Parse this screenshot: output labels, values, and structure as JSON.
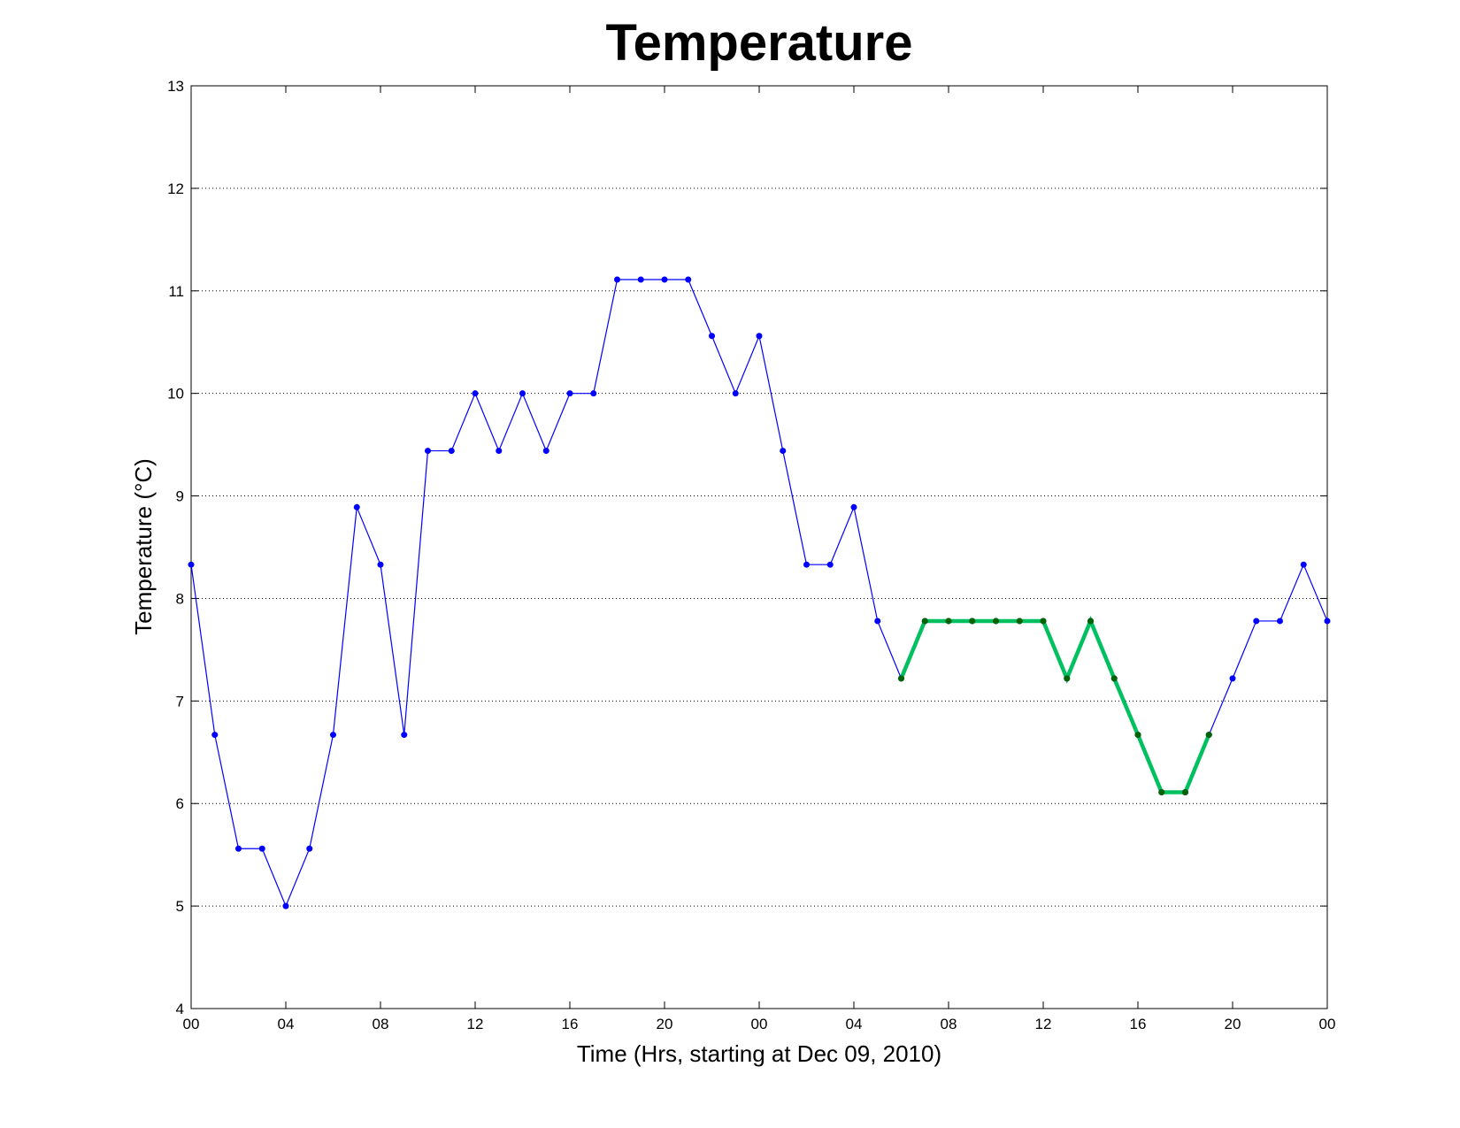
{
  "chart_data": {
    "type": "line",
    "title": "Temperature",
    "xlabel": "Time (Hrs, starting at Dec 09, 2010)",
    "ylabel": "Temperature (°C)",
    "xlim": [
      0,
      48
    ],
    "ylim": [
      4,
      13
    ],
    "x_ticks": [
      0,
      4,
      8,
      12,
      16,
      20,
      24,
      28,
      32,
      36,
      40,
      44,
      48
    ],
    "x_tick_labels": [
      "00",
      "04",
      "08",
      "12",
      "16",
      "20",
      "00",
      "04",
      "08",
      "12",
      "16",
      "20",
      "00"
    ],
    "y_ticks": [
      4,
      5,
      6,
      7,
      8,
      9,
      10,
      11,
      12,
      13
    ],
    "y_tick_labels": [
      "4",
      "5",
      "6",
      "7",
      "8",
      "9",
      "10",
      "11",
      "12",
      "13"
    ],
    "grid": "horizontal dotted",
    "colors": {
      "observed": "#0000ff",
      "highlight_line": "#00c060",
      "highlight_marker": "#006400"
    },
    "series": [
      {
        "x": [
          0,
          1,
          2,
          3,
          4,
          5,
          6,
          7,
          8,
          9,
          10,
          11,
          12,
          13,
          14,
          15,
          16,
          17,
          18,
          19,
          20,
          21,
          22,
          23,
          24,
          25,
          26,
          27,
          28,
          29,
          30,
          31,
          32,
          33,
          34,
          35,
          36,
          37,
          38,
          39,
          40,
          41,
          42,
          43,
          44,
          45,
          46,
          47,
          48
        ],
        "values": [
          8.33,
          6.67,
          5.56,
          5.56,
          5.0,
          5.56,
          6.67,
          8.89,
          8.33,
          6.67,
          9.44,
          9.44,
          10.0,
          9.44,
          10.0,
          9.44,
          10.0,
          10.0,
          11.11,
          11.11,
          11.11,
          11.11,
          10.56,
          10.0,
          10.56,
          9.44,
          8.33,
          8.33,
          8.89,
          7.78,
          7.22,
          7.78,
          7.78,
          7.78,
          7.78,
          7.78,
          7.78,
          7.22,
          7.78,
          7.22,
          6.67,
          6.11,
          6.11,
          6.67,
          7.22,
          7.78,
          7.78,
          8.33,
          7.78
        ]
      },
      {
        "x": [
          30,
          31,
          32,
          33,
          34,
          35,
          36,
          37,
          38,
          39,
          40,
          41,
          42,
          43
        ],
        "values": [
          7.22,
          7.78,
          7.78,
          7.78,
          7.78,
          7.78,
          7.78,
          7.22,
          7.78,
          7.22,
          6.67,
          6.11,
          6.11,
          6.67
        ]
      }
    ]
  }
}
